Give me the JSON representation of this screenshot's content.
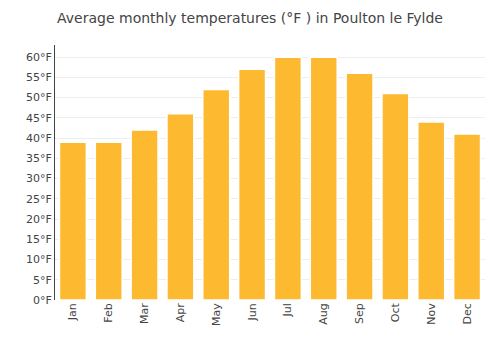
{
  "chart_data": {
    "type": "bar",
    "title": "Average monthly temperatures (°F ) in Poulton le Fylde",
    "categories": [
      "Jan",
      "Feb",
      "Mar",
      "Apr",
      "May",
      "Jun",
      "Jul",
      "Aug",
      "Sep",
      "Oct",
      "Nov",
      "Dec"
    ],
    "values": [
      39,
      39,
      42,
      46,
      52,
      57,
      60,
      60,
      56,
      51,
      44,
      41
    ],
    "color": "#FDB930",
    "ylim": [
      0,
      63
    ],
    "yticks": [
      {
        "value": 0,
        "label": "0°F"
      },
      {
        "value": 5,
        "label": "5°F"
      },
      {
        "value": 10,
        "label": "10°F"
      },
      {
        "value": 15,
        "label": "15°F"
      },
      {
        "value": 20,
        "label": "20°F"
      },
      {
        "value": 25,
        "label": "25°F"
      },
      {
        "value": 30,
        "label": "30°F"
      },
      {
        "value": 35,
        "label": "35°F"
      },
      {
        "value": 40,
        "label": "40°F"
      },
      {
        "value": 45,
        "label": "45°F"
      },
      {
        "value": 50,
        "label": "50°F"
      },
      {
        "value": 55,
        "label": "55°F"
      },
      {
        "value": 60,
        "label": "60°F"
      }
    ],
    "grid": true
  }
}
